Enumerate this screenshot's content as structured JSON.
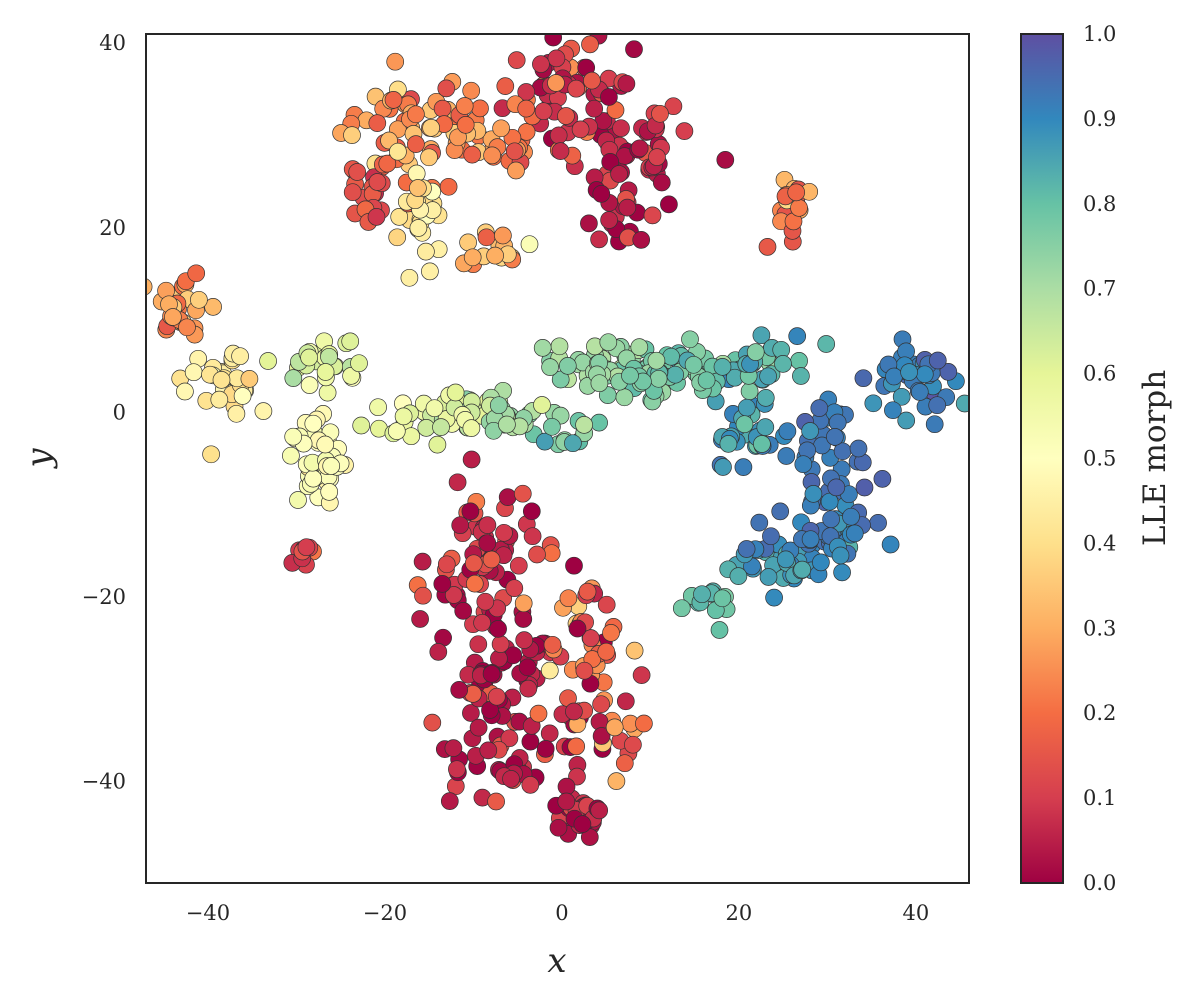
{
  "chart_data": {
    "type": "scatter",
    "title": "",
    "xlabel": "x",
    "ylabel": "y",
    "xlim": [
      -47,
      46
    ],
    "ylim": [
      -51,
      41
    ],
    "x_ticks": [
      -40,
      -20,
      0,
      20,
      40
    ],
    "y_ticks": [
      -40,
      -20,
      0,
      20,
      40
    ],
    "x_tick_labels": [
      "−40",
      "−20",
      "0",
      "20",
      "40"
    ],
    "y_tick_labels": [
      "−40",
      "−20",
      "0",
      "20",
      "40"
    ],
    "grid": false,
    "legend": "none",
    "colorbar": {
      "label": "LLE morph",
      "cmap": "Spectral",
      "range": [
        0.0,
        1.0
      ],
      "ticks": [
        0.0,
        0.1,
        0.2,
        0.3,
        0.4,
        0.5,
        0.6,
        0.7,
        0.8,
        0.9,
        1.0
      ],
      "tick_labels": [
        "0.0",
        "0.1",
        "0.2",
        "0.3",
        "0.4",
        "0.5",
        "0.6",
        "0.7",
        "0.8",
        "0.9",
        "1.0"
      ],
      "colors": [
        "#9e0142",
        "#d53e4f",
        "#f46d43",
        "#fdae61",
        "#fee08b",
        "#ffffbf",
        "#e6f598",
        "#abdda4",
        "#66c2a5",
        "#3288bd",
        "#5e4fa2"
      ]
    },
    "point_edge_color": "#333333",
    "clusters": [
      {
        "x": -16.0,
        "y": 30.5,
        "sx": 4.5,
        "sy": 3.0,
        "n": 70,
        "v": 0.25,
        "vs": 0.07
      },
      {
        "x": -5.5,
        "y": 28.5,
        "sx": 1.6,
        "sy": 1.0,
        "n": 14,
        "v": 0.22,
        "vs": 0.05
      },
      {
        "x": -22.0,
        "y": 24.0,
        "sx": 1.5,
        "sy": 2.0,
        "n": 22,
        "v": 0.14,
        "vs": 0.06
      },
      {
        "x": -16.0,
        "y": 21.5,
        "sx": 1.2,
        "sy": 3.0,
        "n": 30,
        "v": 0.43,
        "vs": 0.03
      },
      {
        "x": -7.0,
        "y": 17.0,
        "sx": 2.0,
        "sy": 1.2,
        "n": 16,
        "v": 0.3,
        "vs": 0.08
      },
      {
        "x": 1.0,
        "y": 35.0,
        "sx": 3.5,
        "sy": 2.5,
        "n": 60,
        "v": 0.1,
        "vs": 0.07
      },
      {
        "x": 7.0,
        "y": 28.5,
        "sx": 3.5,
        "sy": 3.0,
        "n": 55,
        "v": 0.05,
        "vs": 0.06
      },
      {
        "x": 6.0,
        "y": 21.0,
        "sx": 2.0,
        "sy": 1.5,
        "n": 18,
        "v": 0.05,
        "vs": 0.06
      },
      {
        "x": 25.5,
        "y": 22.5,
        "sx": 1.0,
        "sy": 1.8,
        "n": 20,
        "v": 0.22,
        "vs": 0.07
      },
      {
        "x": -43.0,
        "y": 12.0,
        "sx": 1.5,
        "sy": 1.6,
        "n": 30,
        "v": 0.28,
        "vs": 0.06
      },
      {
        "x": -38.5,
        "y": 3.5,
        "sx": 2.0,
        "sy": 2.0,
        "n": 32,
        "v": 0.43,
        "vs": 0.03
      },
      {
        "x": -28.0,
        "y": 5.5,
        "sx": 2.5,
        "sy": 1.5,
        "n": 28,
        "v": 0.6,
        "vs": 0.05
      },
      {
        "x": -27.0,
        "y": -5.5,
        "sx": 2.0,
        "sy": 2.5,
        "n": 48,
        "v": 0.5,
        "vs": 0.03
      },
      {
        "x": -29.5,
        "y": -15.0,
        "sx": 0.8,
        "sy": 0.8,
        "n": 10,
        "v": 0.1,
        "vs": 0.06
      },
      {
        "x": -14.0,
        "y": 0.0,
        "sx": 3.5,
        "sy": 1.2,
        "n": 42,
        "v": 0.6,
        "vs": 0.04
      },
      {
        "x": -6.0,
        "y": -0.5,
        "sx": 2.5,
        "sy": 1.2,
        "n": 28,
        "v": 0.68,
        "vs": 0.04
      },
      {
        "x": 0.5,
        "y": -2.0,
        "sx": 2.0,
        "sy": 0.8,
        "n": 12,
        "v": 0.75,
        "vs": 0.05
      },
      {
        "x": 4.5,
        "y": 5.0,
        "sx": 3.0,
        "sy": 1.5,
        "n": 50,
        "v": 0.72,
        "vs": 0.03
      },
      {
        "x": 12.0,
        "y": 4.5,
        "sx": 3.0,
        "sy": 1.5,
        "n": 48,
        "v": 0.78,
        "vs": 0.03
      },
      {
        "x": 22.0,
        "y": 5.0,
        "sx": 3.0,
        "sy": 2.0,
        "n": 36,
        "v": 0.82,
        "vs": 0.04
      },
      {
        "x": 21.0,
        "y": -2.5,
        "sx": 2.5,
        "sy": 2.0,
        "n": 26,
        "v": 0.87,
        "vs": 0.03
      },
      {
        "x": 31.0,
        "y": -4.0,
        "sx": 2.0,
        "sy": 3.0,
        "n": 34,
        "v": 0.93,
        "vs": 0.02
      },
      {
        "x": 39.5,
        "y": 3.5,
        "sx": 2.5,
        "sy": 2.0,
        "n": 40,
        "v": 0.93,
        "vs": 0.03
      },
      {
        "x": 29.0,
        "y": -12.5,
        "sx": 3.0,
        "sy": 2.5,
        "n": 36,
        "v": 0.92,
        "vs": 0.02
      },
      {
        "x": 24.0,
        "y": -16.5,
        "sx": 3.0,
        "sy": 1.5,
        "n": 26,
        "v": 0.87,
        "vs": 0.03
      },
      {
        "x": 32.0,
        "y": -14.5,
        "sx": 1.5,
        "sy": 2.0,
        "n": 18,
        "v": 0.9,
        "vs": 0.03
      },
      {
        "x": 17.5,
        "y": -20.5,
        "sx": 1.5,
        "sy": 1.2,
        "n": 16,
        "v": 0.8,
        "vs": 0.03
      },
      {
        "x": -9.0,
        "y": -15.5,
        "sx": 3.0,
        "sy": 3.5,
        "n": 60,
        "v": 0.08,
        "vs": 0.08
      },
      {
        "x": -7.0,
        "y": -27.5,
        "sx": 3.0,
        "sy": 4.0,
        "n": 70,
        "v": 0.04,
        "vs": 0.06
      },
      {
        "x": 2.5,
        "y": -25.0,
        "sx": 2.0,
        "sy": 3.0,
        "n": 36,
        "v": 0.12,
        "vs": 0.12
      },
      {
        "x": 3.0,
        "y": -33.5,
        "sx": 3.0,
        "sy": 2.5,
        "n": 38,
        "v": 0.12,
        "vs": 0.12
      },
      {
        "x": -7.0,
        "y": -38.5,
        "sx": 3.5,
        "sy": 1.5,
        "n": 30,
        "v": 0.05,
        "vs": 0.06
      },
      {
        "x": 2.0,
        "y": -43.5,
        "sx": 1.5,
        "sy": 1.5,
        "n": 28,
        "v": 0.04,
        "vs": 0.04
      }
    ]
  }
}
